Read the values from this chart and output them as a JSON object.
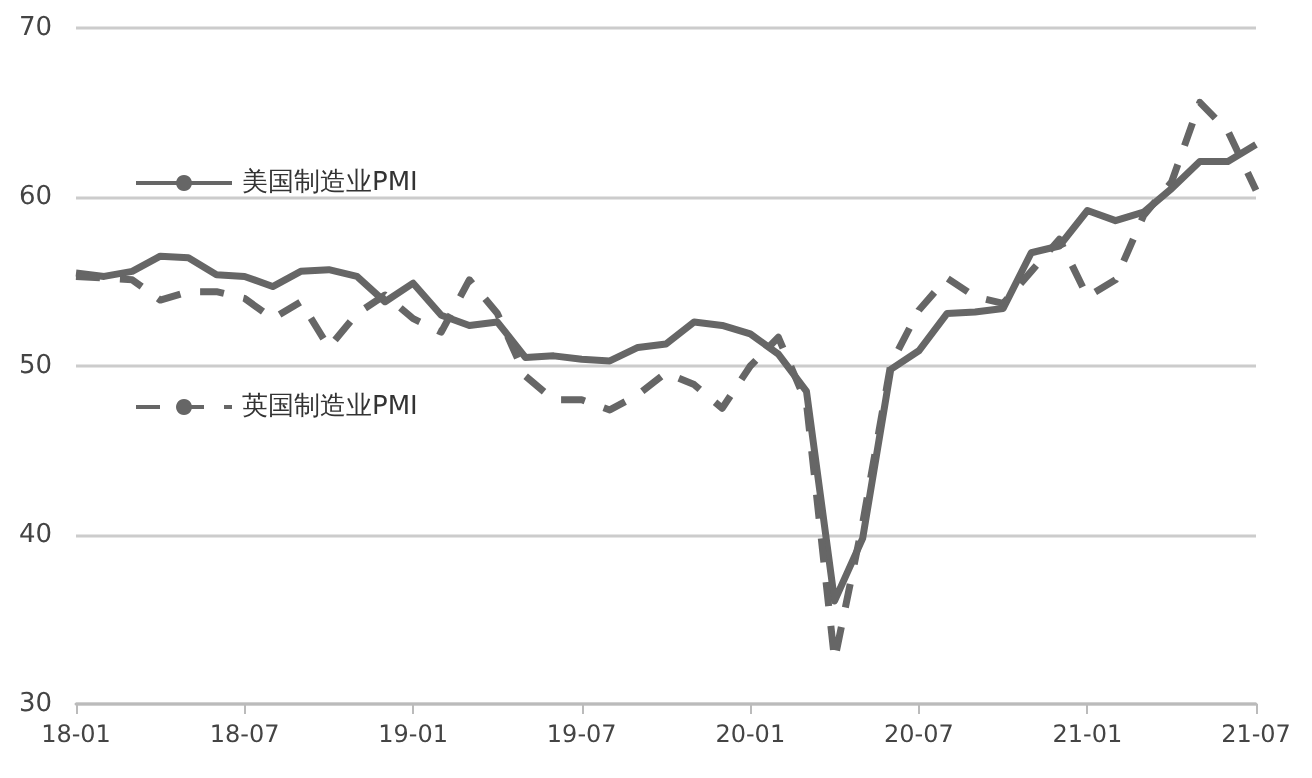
{
  "chart_data": {
    "type": "line",
    "categories": [
      "18-01",
      null,
      null,
      null,
      null,
      null,
      "18-07",
      null,
      null,
      null,
      null,
      null,
      "19-01",
      null,
      null,
      null,
      null,
      null,
      "19-07",
      null,
      null,
      null,
      null,
      null,
      "20-01",
      null,
      null,
      null,
      null,
      null,
      "20-07",
      null,
      null,
      null,
      null,
      null,
      "21-01",
      null,
      null,
      null,
      null,
      null,
      "21-07"
    ],
    "series": [
      {
        "name": "美国制造业PMI",
        "color": "#666666",
        "line_style": "solid",
        "values": [
          55.5,
          55.3,
          55.6,
          56.5,
          56.4,
          55.4,
          55.3,
          54.7,
          55.6,
          55.7,
          55.3,
          53.8,
          54.9,
          53.0,
          52.4,
          52.6,
          50.5,
          50.6,
          50.4,
          50.3,
          51.1,
          51.3,
          52.6,
          52.4,
          51.9,
          50.7,
          48.5,
          36.1,
          39.8,
          49.8,
          50.9,
          53.1,
          53.2,
          53.4,
          56.7,
          57.1,
          59.2,
          58.6,
          59.1,
          60.5,
          62.1,
          62.1,
          63.1
        ]
      },
      {
        "name": "英国制造业PMI",
        "color": "#666666",
        "line_style": "dashed",
        "values": [
          55.3,
          55.2,
          55.1,
          53.9,
          54.4,
          54.4,
          54.0,
          52.8,
          53.8,
          51.1,
          53.1,
          54.2,
          52.8,
          52.0,
          55.1,
          53.1,
          49.4,
          48.0,
          48.0,
          47.4,
          48.3,
          49.6,
          48.9,
          47.5,
          50.0,
          51.7,
          47.8,
          32.6,
          40.7,
          50.1,
          53.3,
          55.2,
          54.1,
          53.7,
          55.6,
          57.5,
          54.1,
          55.1,
          58.9,
          60.9,
          65.6,
          63.9,
          60.4
        ]
      }
    ],
    "ylim": [
      30,
      70
    ],
    "yticks": [
      30,
      40,
      50,
      60,
      70
    ],
    "grid": "y",
    "legend": "left",
    "marker": "none"
  }
}
